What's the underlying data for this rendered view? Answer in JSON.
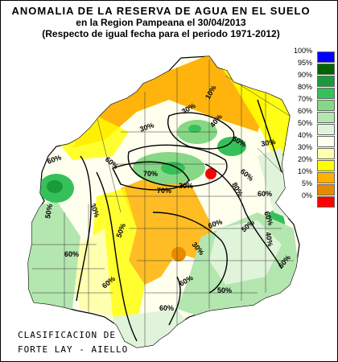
{
  "title": {
    "line1": "ANOMALIA DE LA RESERVA DE AGUA EN EL SUELO",
    "line2": "en la Region Pampeana el  30/04/2013",
    "line3": "(Respecto de igual fecha para el periodo 1971-2012)"
  },
  "legend": [
    {
      "label": "100%",
      "color": "#0000ff"
    },
    {
      "label": "95%",
      "color": "#006400"
    },
    {
      "label": "90%",
      "color": "#1a9a3a"
    },
    {
      "label": "80%",
      "color": "#36c05a"
    },
    {
      "label": "70%",
      "color": "#86d886"
    },
    {
      "label": "60%",
      "color": "#b4e6b0"
    },
    {
      "label": "50%",
      "color": "#e0f4da"
    },
    {
      "label": "40%",
      "color": "#ffffee"
    },
    {
      "label": "30%",
      "color": "#ffffb0"
    },
    {
      "label": "20%",
      "color": "#ffff00"
    },
    {
      "label": "10%",
      "color": "#ffb000"
    },
    {
      "label": "5%",
      "color": "#e88a00"
    },
    {
      "label": "0%",
      "color": "#ff0000"
    }
  ],
  "map_labels": [
    "10%",
    "30%",
    "30%",
    "40%",
    "60%",
    "30%",
    "60%",
    "70%",
    "60%",
    "30%",
    "60%",
    "50%",
    "30%",
    "80%",
    "50%",
    "60%",
    "60%",
    "40%",
    "50%",
    "30%",
    "60%",
    "70%",
    "60%",
    "60%",
    "50%",
    "60%",
    "60%",
    "60%"
  ],
  "credit": {
    "line1": "CLASIFICACION DE",
    "line2": "FORTE LAY - AIELLO"
  }
}
